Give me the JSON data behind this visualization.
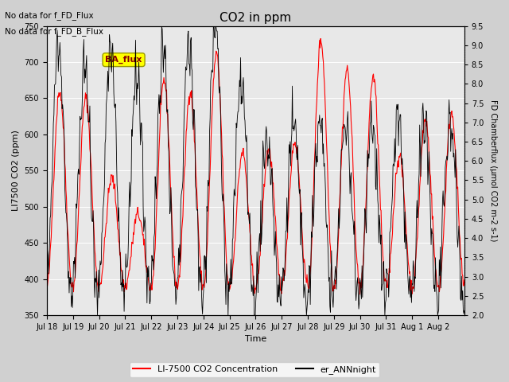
{
  "title": "CO2 in ppm",
  "xlabel": "Time",
  "ylabel_left": "LI7500 CO2 (ppm)",
  "ylabel_right": "FD Chamberflux (μmol CO2 m-2 s-1)",
  "ylim_left": [
    350,
    750
  ],
  "ylim_right": [
    2.0,
    9.5
  ],
  "yticks_left": [
    350,
    400,
    450,
    500,
    550,
    600,
    650,
    700,
    750
  ],
  "yticks_right": [
    2.0,
    2.5,
    3.0,
    3.5,
    4.0,
    4.5,
    5.0,
    5.5,
    6.0,
    6.5,
    7.0,
    7.5,
    8.0,
    8.5,
    9.0,
    9.5
  ],
  "xtick_labels": [
    "Jul 18",
    "Jul 19",
    "Jul 20",
    "Jul 21",
    "Jul 22",
    "Jul 23",
    "Jul 24",
    "Jul 25",
    "Jul 26",
    "Jul 27",
    "Jul 28",
    "Jul 29",
    "Jul 30",
    "Jul 31",
    "Aug 1",
    "Aug 2"
  ],
  "no_data_text1": "No data for f_FD_Flux",
  "no_data_text2": "No data for f_FD_B_Flux",
  "ba_flux_label": "BA_flux",
  "legend_red_label": "LI-7500 CO2 Concentration",
  "legend_black_label": "er_ANNnight",
  "red_color": "#ff0000",
  "black_color": "#000000",
  "n_days": 16,
  "pts_per_day": 48,
  "red_base": 390,
  "black_base": 2.5,
  "red_amp_pattern": [
    270,
    260,
    150,
    100,
    285,
    270,
    320,
    185,
    190,
    200,
    340,
    300,
    290,
    180,
    230,
    240
  ],
  "black_amp_pattern": [
    6.5,
    6.0,
    6.2,
    5.8,
    6.5,
    6.5,
    7.0,
    5.5,
    4.0,
    4.5,
    4.5,
    4.5,
    4.5,
    4.5,
    4.5,
    4.5
  ]
}
